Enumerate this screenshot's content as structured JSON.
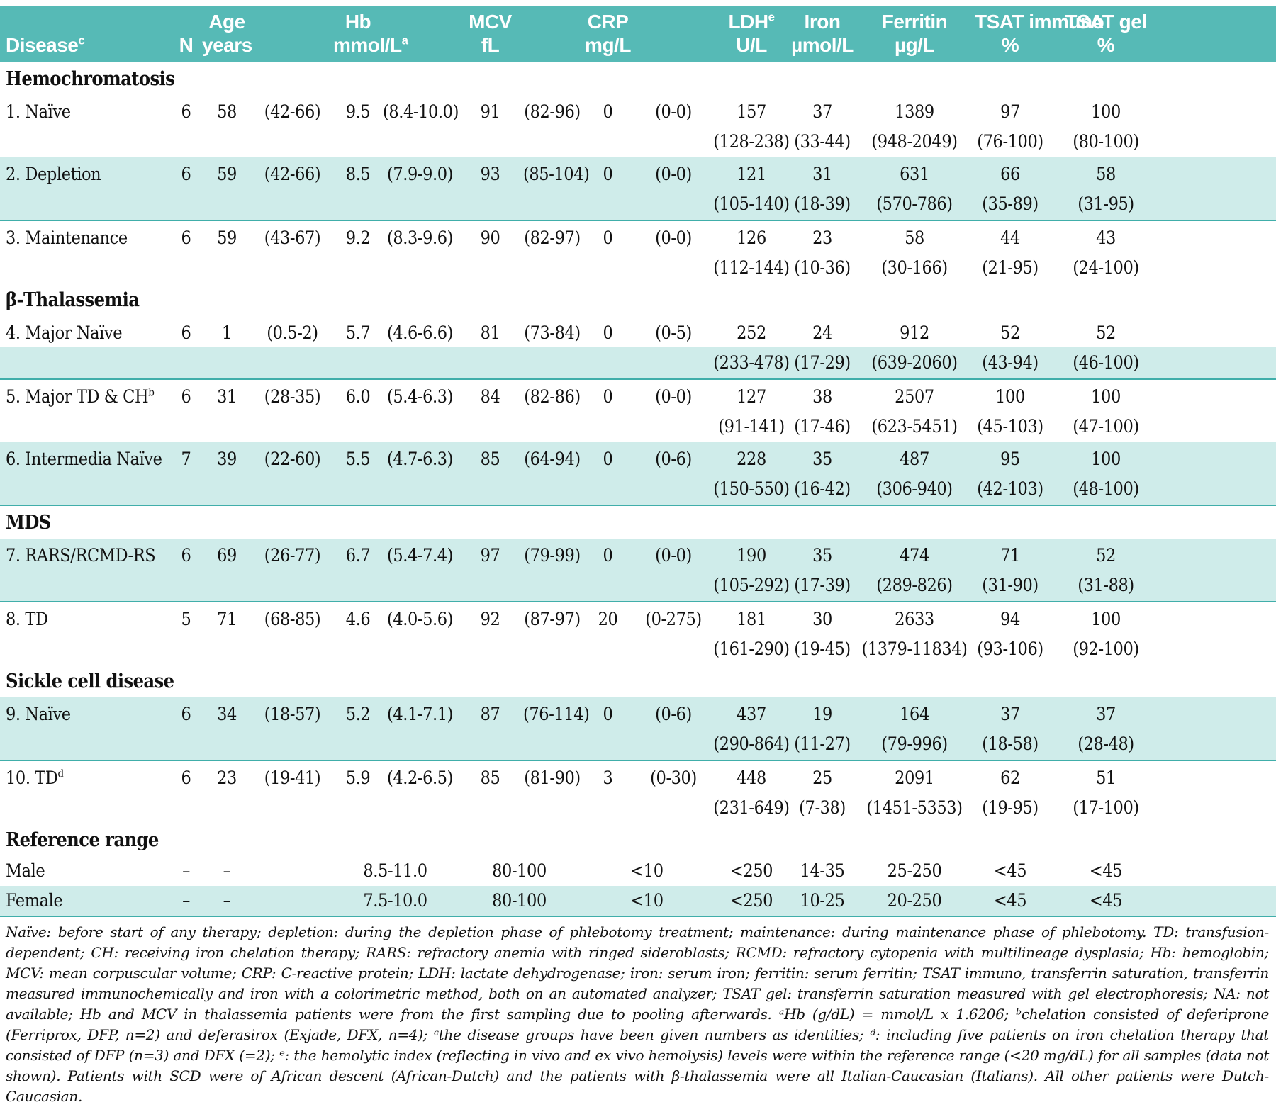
{
  "colors": {
    "header_teal": "#56bab6",
    "stripe": "#cfecea",
    "rule": "#40aeaa"
  },
  "header": {
    "disease": {
      "label": "Disease",
      "sup": "c"
    },
    "n": {
      "label": "N"
    },
    "age": {
      "top": "Age",
      "bottom": "years"
    },
    "hb": {
      "top": "Hb",
      "bottom": "mmol/L",
      "sup": "a"
    },
    "mcv": {
      "top": "MCV",
      "bottom": "fL"
    },
    "crp": {
      "top": "CRP",
      "bottom": "mg/L"
    },
    "ldh": {
      "top": "LDH",
      "sup": "e",
      "bottom": "U/L"
    },
    "iron": {
      "top": "Iron",
      "bottom": "µmol/L"
    },
    "ferritin": {
      "top": "Ferritin",
      "bottom": "µg/L"
    },
    "tsat_immuno": {
      "top": "TSAT immuno",
      "bottom": "%"
    },
    "tsat_gel": {
      "top": "TSAT gel",
      "bottom": "%"
    }
  },
  "sections": [
    {
      "title": "Hemochromatosis",
      "rows": [
        {
          "label": "1. Naïve",
          "shade": "white",
          "cells": [
            [
              "6"
            ],
            [
              "58"
            ],
            [
              "(42-66)"
            ],
            [
              "9.5"
            ],
            [
              "(8.4-10.0)"
            ],
            [
              "91"
            ],
            [
              "(82-96)"
            ],
            [
              "0"
            ],
            [
              "(0-0)"
            ],
            [
              "157",
              "(128-238)"
            ],
            [
              "37",
              "(33-44)"
            ],
            [
              "1389",
              "(948-2049)"
            ],
            [
              "97",
              "(76-100)"
            ],
            [
              "100",
              "(80-100)"
            ]
          ]
        },
        {
          "label": "2. Depletion",
          "shade": "teal",
          "cells": [
            [
              "6"
            ],
            [
              "59"
            ],
            [
              "(42-66)"
            ],
            [
              "8.5"
            ],
            [
              "(7.9-9.0)"
            ],
            [
              "93"
            ],
            [
              "(85-104)"
            ],
            [
              "0"
            ],
            [
              "(0-0)"
            ],
            [
              "121",
              "(105-140)"
            ],
            [
              "31",
              "(18-39)"
            ],
            [
              "631",
              "(570-786)"
            ],
            [
              "66",
              "(35-89)"
            ],
            [
              "58",
              "(31-95)"
            ]
          ]
        },
        {
          "label": "3. Maintenance",
          "shade": "white",
          "cells": [
            [
              "6"
            ],
            [
              "59"
            ],
            [
              "(43-67)"
            ],
            [
              "9.2"
            ],
            [
              "(8.3-9.6)"
            ],
            [
              "90"
            ],
            [
              "(82-97)"
            ],
            [
              "0"
            ],
            [
              "(0-0)"
            ],
            [
              "126",
              "(112-144)"
            ],
            [
              "23",
              "(10-36)"
            ],
            [
              "58",
              "(30-166)"
            ],
            [
              "44",
              "(21-95)"
            ],
            [
              "43",
              "(24-100)"
            ]
          ]
        }
      ]
    },
    {
      "title": "β-Thalassemia",
      "rows": [
        {
          "label": "4. Major Naïve",
          "shade": "split",
          "cells": [
            [
              "6"
            ],
            [
              "1"
            ],
            [
              "(0.5-2)"
            ],
            [
              "5.7"
            ],
            [
              "(4.6-6.6)"
            ],
            [
              "81"
            ],
            [
              "(73-84)"
            ],
            [
              "0"
            ],
            [
              "(0-5)"
            ],
            [
              "252",
              "(233-478)"
            ],
            [
              "24",
              "(17-29)"
            ],
            [
              "912",
              "(639-2060)"
            ],
            [
              "52",
              "(43-94)"
            ],
            [
              "52",
              "(46-100)"
            ]
          ]
        },
        {
          "label": "5. Major TD & CH",
          "sup": "b",
          "shade": "white",
          "cells": [
            [
              "6"
            ],
            [
              "31"
            ],
            [
              "(28-35)"
            ],
            [
              "6.0"
            ],
            [
              "(5.4-6.3)"
            ],
            [
              "84"
            ],
            [
              "(82-86)"
            ],
            [
              "0"
            ],
            [
              "(0-0)"
            ],
            [
              "127",
              "(91-141)"
            ],
            [
              "38",
              "(17-46)"
            ],
            [
              "2507",
              "(623-5451)"
            ],
            [
              "100",
              "(45-103)"
            ],
            [
              "100",
              "(47-100)"
            ]
          ]
        },
        {
          "label": "6. Intermedia Naïve",
          "shade": "teal",
          "cells": [
            [
              "7"
            ],
            [
              "39"
            ],
            [
              "(22-60)"
            ],
            [
              "5.5"
            ],
            [
              "(4.7-6.3)"
            ],
            [
              "85"
            ],
            [
              "(64-94)"
            ],
            [
              "0"
            ],
            [
              "(0-6)"
            ],
            [
              "228",
              "(150-550)"
            ],
            [
              "35",
              "(16-42)"
            ],
            [
              "487",
              "(306-940)"
            ],
            [
              "95",
              "(42-103)"
            ],
            [
              "100",
              "(48-100)"
            ]
          ]
        }
      ]
    },
    {
      "title": "MDS",
      "rows": [
        {
          "label": "7. RARS/RCMD-RS",
          "shade": "teal",
          "cells": [
            [
              "6"
            ],
            [
              "69"
            ],
            [
              "(26-77)"
            ],
            [
              "6.7"
            ],
            [
              "(5.4-7.4)"
            ],
            [
              "97"
            ],
            [
              "(79-99)"
            ],
            [
              "0"
            ],
            [
              "(0-0)"
            ],
            [
              "190",
              "(105-292)"
            ],
            [
              "35",
              "(17-39)"
            ],
            [
              "474",
              "(289-826)"
            ],
            [
              "71",
              "(31-90)"
            ],
            [
              "52",
              "(31-88)"
            ]
          ]
        },
        {
          "label": "8. TD",
          "shade": "white",
          "cells": [
            [
              "5"
            ],
            [
              "71"
            ],
            [
              "(68-85)"
            ],
            [
              "4.6"
            ],
            [
              "(4.0-5.6)"
            ],
            [
              "92"
            ],
            [
              "(87-97)"
            ],
            [
              "20"
            ],
            [
              "(0-275)"
            ],
            [
              "181",
              "(161-290)"
            ],
            [
              "30",
              "(19-45)"
            ],
            [
              "2633",
              "(1379-11834)"
            ],
            [
              "94",
              "(93-106)"
            ],
            [
              "100",
              "(92-100)"
            ]
          ]
        }
      ]
    },
    {
      "title": "Sickle cell disease",
      "rows": [
        {
          "label": "9. Naïve",
          "shade": "teal",
          "cells": [
            [
              "6"
            ],
            [
              "34"
            ],
            [
              "(18-57)"
            ],
            [
              "5.2"
            ],
            [
              "(4.1-7.1)"
            ],
            [
              "87"
            ],
            [
              "(76-114)"
            ],
            [
              "0"
            ],
            [
              "(0-6)"
            ],
            [
              "437",
              "(290-864)"
            ],
            [
              "19",
              "(11-27)"
            ],
            [
              "164",
              "(79-996)"
            ],
            [
              "37",
              "(18-58)"
            ],
            [
              "37",
              "(28-48)"
            ]
          ]
        },
        {
          "label": "10. TD",
          "sup": "d",
          "shade": "white",
          "cells": [
            [
              "6"
            ],
            [
              "23"
            ],
            [
              "(19-41)"
            ],
            [
              "5.9"
            ],
            [
              "(4.2-6.5)"
            ],
            [
              "85"
            ],
            [
              "(81-90)"
            ],
            [
              "3"
            ],
            [
              "(0-30)"
            ],
            [
              "448",
              "(231-649)"
            ],
            [
              "25",
              "(7-38)"
            ],
            [
              "2091",
              "(1451-5353)"
            ],
            [
              "62",
              "(19-95)"
            ],
            [
              "51",
              "(17-100)"
            ]
          ]
        }
      ]
    },
    {
      "title": "Reference range",
      "type": "reference",
      "rows": [
        {
          "label": "Male",
          "shade": "white",
          "ref_cells": [
            "–",
            "–",
            "8.5-11.0",
            "80-100",
            "<10",
            "<250",
            "14-35",
            "25-250",
            "<45",
            "<45"
          ]
        },
        {
          "label": "Female",
          "shade": "teal",
          "ref_cells": [
            "–",
            "–",
            "7.5-10.0",
            "80-100",
            "<10",
            "<250",
            "10-25",
            "20-250",
            "<45",
            "<45"
          ]
        }
      ]
    }
  ],
  "footnote": "Naïve: before start of any therapy; depletion: during the depletion phase of phlebotomy treatment; maintenance: during maintenance phase of phlebotomy. TD: transfusion-dependent; CH: receiving iron chelation therapy; RARS: refractory anemia with ringed sideroblasts; RCMD: refractory cytopenia with multilineage dysplasia; Hb: hemoglobin; MCV: mean corpuscular volume; CRP: C-reactive protein; LDH: lactate dehydrogenase; iron: serum iron; ferritin: serum ferritin; TSAT immuno, transferrin saturation, transferrin measured immunochemically and iron with a colorimetric method, both on an automated analyzer; TSAT gel: transferrin saturation measured with gel electrophoresis; NA: not available; Hb and MCV in thalassemia patients were from the first sampling due to pooling afterwards. ᵃHb (g/dL) = mmol/L x 1.6206; ᵇchelation consisted of deferiprone (Ferriprox, DFP, n=2) and deferasirox (Exjade, DFX, n=4); ᶜthe disease groups have been given numbers as identities; ᵈ: including five patients on iron chelation therapy that consisted of DFP (n=3) and DFX (=2); ᵉ: the hemolytic index (reflecting in vivo and ex vivo hemolysis) levels were within the reference range (<20 mg/dL) for all samples (data not shown). Patients with SCD were of African descent (African-Dutch) and the patients with β-thalassemia were all Italian-Caucasian (Italians). All other patients were Dutch-Caucasian."
}
